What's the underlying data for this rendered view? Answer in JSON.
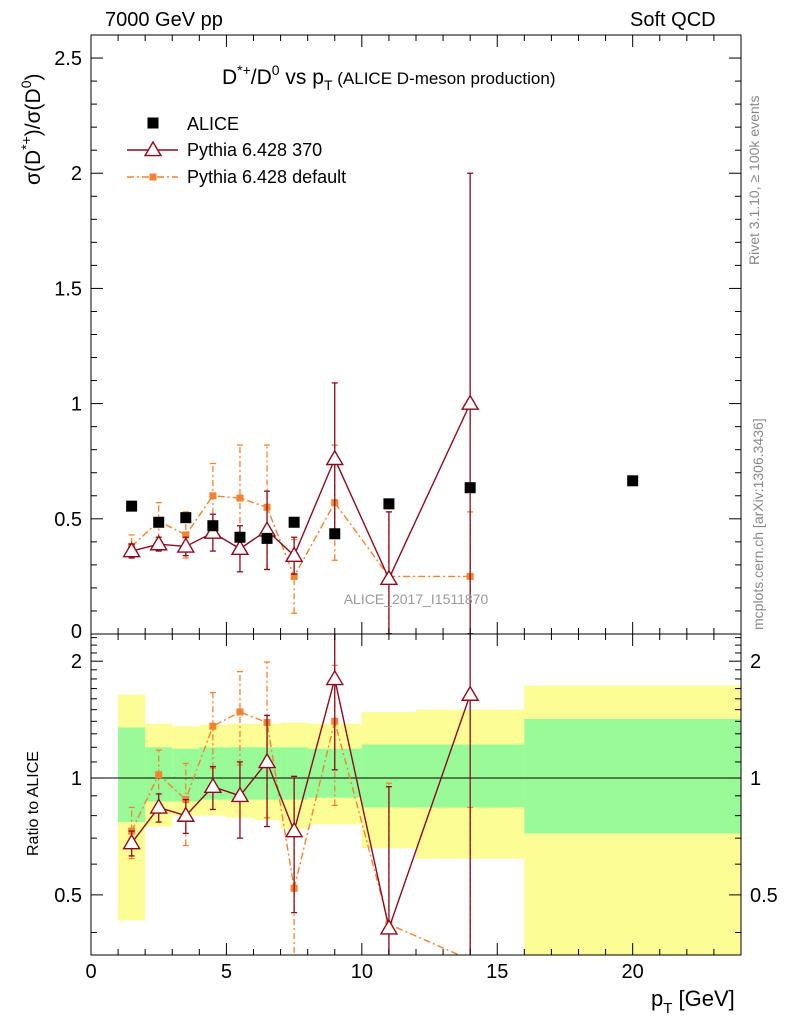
{
  "header": {
    "left": "7000 GeV pp",
    "right": "Soft QCD"
  },
  "side_labels": {
    "rivet": "Rivet 3.1.10, ≥ 100k events",
    "mcplots": "mcplots.cern.ch [arXiv:1306.3436]"
  },
  "colors": {
    "alice": "#000000",
    "pythia370": "#8b0c1e",
    "pythia_default": "#f58231",
    "band_inner": "#98fb98",
    "band_outer": "#fdfd96"
  },
  "chart_data": [
    {
      "type": "scatter",
      "title_parts": {
        "main": "D*+/D0 vs pT",
        "sub": "(ALICE D-meson production)"
      },
      "ylabel": "σ(D*+)/σ(D0)",
      "xlim": [
        0,
        24
      ],
      "ylim": [
        0,
        2.6
      ],
      "yticks": [
        0.5,
        1,
        1.5,
        2,
        2.5
      ],
      "legend_position": "top-left",
      "watermark": "ALICE_2017_I1511870",
      "series": [
        {
          "name": "ALICE",
          "x": [
            1.5,
            2.5,
            3.5,
            4.5,
            5.5,
            6.5,
            7.5,
            9,
            11,
            14,
            20
          ],
          "y": [
            0.555,
            0.485,
            0.505,
            0.47,
            0.42,
            0.415,
            0.485,
            0.435,
            0.565,
            0.635,
            0.665
          ]
        },
        {
          "name": "Pythia 6.428 370",
          "x": [
            1.5,
            2.5,
            3.5,
            4.5,
            5.5,
            6.5,
            7.5,
            9,
            11,
            14
          ],
          "y": [
            0.36,
            0.39,
            0.38,
            0.44,
            0.37,
            0.45,
            0.34,
            0.76,
            0.24,
            1.0
          ],
          "err": [
            0.03,
            0.03,
            0.04,
            0.08,
            0.1,
            0.17,
            0.08,
            0.33,
            0.29,
            1.0
          ]
        },
        {
          "name": "Pythia 6.428 default",
          "x": [
            1.5,
            2.5,
            3.5,
            4.5,
            5.5,
            6.5,
            7.5,
            9,
            11,
            14
          ],
          "y": [
            0.38,
            0.49,
            0.43,
            0.6,
            0.59,
            0.55,
            0.25,
            0.57,
            0.25,
            0.25
          ],
          "err": [
            0.05,
            0.08,
            0.1,
            0.14,
            0.23,
            0.27,
            0.16,
            0.25,
            0.28,
            0.28
          ]
        }
      ]
    },
    {
      "type": "scatter",
      "ylabel": "Ratio to ALICE",
      "xlabel": "pT [GeV]",
      "xlim": [
        0,
        24
      ],
      "xticks": [
        0,
        5,
        10,
        15,
        20
      ],
      "ylim": [
        0.35,
        2.35
      ],
      "yticks": [
        0.5,
        1,
        2
      ],
      "bands": {
        "edges": [
          1,
          2,
          3,
          4,
          5,
          6,
          7,
          8,
          10,
          12,
          16,
          24
        ],
        "inner_lo": [
          0.77,
          0.87,
          0.87,
          0.88,
          0.88,
          0.88,
          0.88,
          0.89,
          0.84,
          0.84,
          0.72
        ],
        "inner_hi": [
          1.35,
          1.2,
          1.19,
          1.2,
          1.2,
          1.2,
          1.2,
          1.19,
          1.22,
          1.22,
          1.42
        ],
        "outer_lo": [
          0.43,
          0.75,
          0.8,
          0.8,
          0.79,
          0.78,
          0.74,
          0.76,
          0.66,
          0.62,
          0.35
        ],
        "outer_hi": [
          1.64,
          1.38,
          1.36,
          1.37,
          1.38,
          1.38,
          1.39,
          1.38,
          1.48,
          1.5,
          1.73
        ]
      },
      "series": [
        {
          "name": "Pythia 6.428 370",
          "x": [
            1.5,
            2.5,
            3.5,
            4.5,
            5.5,
            6.5,
            7.5,
            9,
            11,
            14
          ],
          "y": [
            0.68,
            0.84,
            0.8,
            0.95,
            0.9,
            1.1,
            0.73,
            1.8,
            0.41,
            1.64
          ],
          "err": [
            0.05,
            0.07,
            0.08,
            0.12,
            0.2,
            0.35,
            0.28,
            0.75,
            0.54,
            1.6
          ]
        },
        {
          "name": "Pythia 6.428 default",
          "x": [
            1.5,
            2.5,
            3.5,
            4.5,
            5.5,
            6.5,
            7.5,
            9,
            11,
            14
          ],
          "y": [
            0.73,
            1.02,
            0.88,
            1.36,
            1.48,
            1.39,
            0.52,
            1.4,
            0.42,
            0.34
          ],
          "err": [
            0.11,
            0.16,
            0.21,
            0.3,
            0.4,
            0.6,
            0.49,
            0.55,
            0.55,
            0.5
          ]
        }
      ]
    }
  ]
}
